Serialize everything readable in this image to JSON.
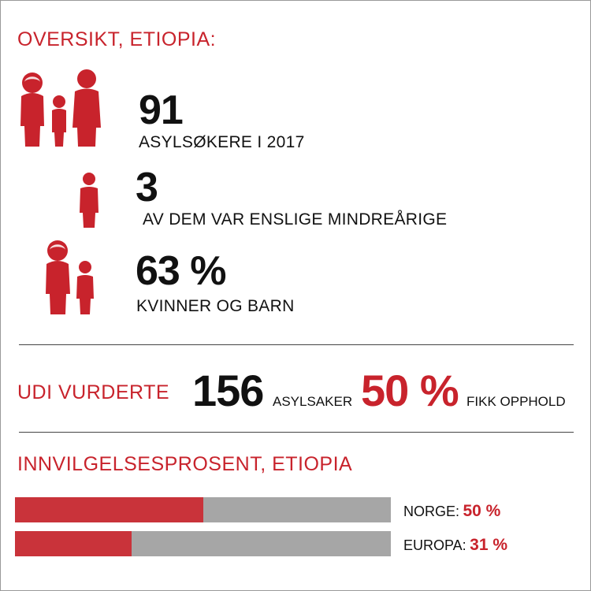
{
  "overview": {
    "title": "OVERSIKT, ETIOPIA:",
    "stats": [
      {
        "value": "91",
        "label": "ASYLSØKERE I 2017",
        "icon": "family-icon"
      },
      {
        "value": "3",
        "label": "AV DEM VAR ENSLIGE MINDREÅRIGE",
        "icon": "child-icon"
      },
      {
        "value": "63 %",
        "label": "KVINNER OG BARN",
        "icon": "woman-child-icon"
      }
    ]
  },
  "udi": {
    "label": "UDI VURDERTE",
    "cases_value": "156",
    "cases_label": "ASYLSAKER",
    "granted_value": "50 %",
    "granted_label": "FIKK OPPHOLD"
  },
  "approval": {
    "title": "INNVILGELSESPROSENT, ETIOPIA",
    "bars": [
      {
        "label": "NORGE:",
        "value": "50 %",
        "percent": 50
      },
      {
        "label": "EUROPA:",
        "value": "31 %",
        "percent": 31
      }
    ]
  },
  "colors": {
    "accent": "#c8232c",
    "bar_fill": "#c9333a",
    "bar_track": "#a6a6a6"
  }
}
